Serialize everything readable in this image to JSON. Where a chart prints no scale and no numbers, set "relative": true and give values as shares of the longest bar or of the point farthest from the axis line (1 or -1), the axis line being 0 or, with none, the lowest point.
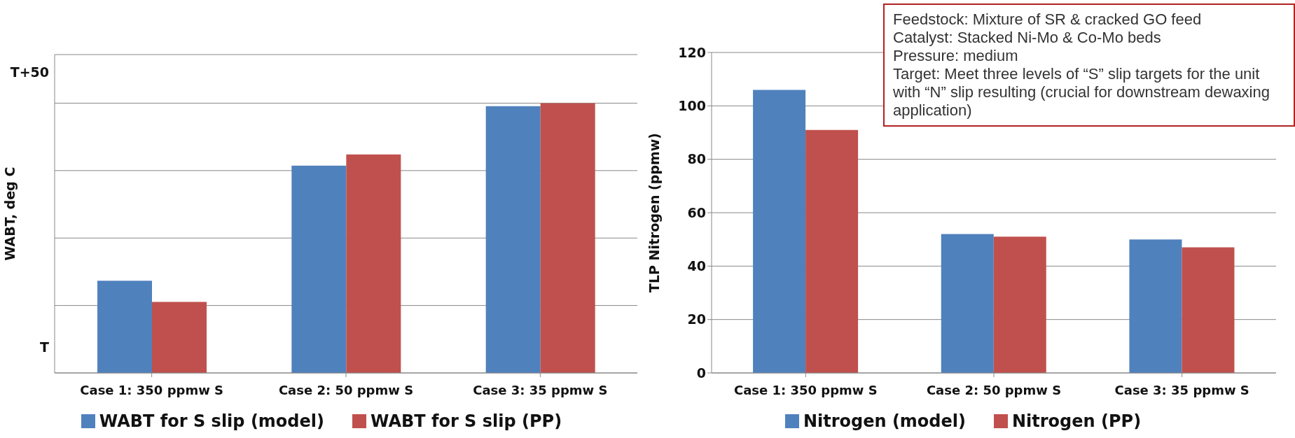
{
  "chart_data": [
    {
      "type": "bar",
      "ylabel": "WABT, deg C",
      "categories": [
        "Case 1: 350 ppmw S",
        "Case 2: 50 ppmw S",
        "Case 3: 35 ppmw S"
      ],
      "series": [
        {
          "name": "WABT for S slip (model)",
          "color": "#4f81bd",
          "values": [
            0.342,
            0.768,
            0.989
          ]
        },
        {
          "name": "WABT for S slip (PP)",
          "color": "#c0504d",
          "values": [
            0.263,
            0.81,
            1
          ]
        }
      ],
      "relative": true,
      "annotations": [
        "T",
        "T+50"
      ],
      "grid": "y",
      "legend": "bottom"
    },
    {
      "type": "bar",
      "ylabel": "TLP Nitrogen (ppmw)",
      "categories": [
        "Case 1: 350 ppmw S",
        "Case 2: 50 ppmw S",
        "Case 3: 35 ppmw S"
      ],
      "series": [
        {
          "name": "Nitrogen (model)",
          "color": "#4f81bd",
          "values": [
            106,
            52,
            50
          ]
        },
        {
          "name": "Nitrogen (PP)",
          "color": "#c0504d",
          "values": [
            91,
            51,
            47
          ]
        }
      ],
      "ylim": [
        0,
        120
      ],
      "yticks": [
        0,
        20,
        40,
        60,
        80,
        100,
        120
      ],
      "grid": "y",
      "legend": "bottom",
      "annotations": [
        "Feedstock: Mixture of SR & cracked GO feed\nCatalyst: Stacked Ni-Mo & Co-Mo beds\nPressure: medium\nTarget: Meet three levels of “S” slip targets for the unit with “N” slip resulting (crucial for downstream dewaxing application)"
      ]
    }
  ]
}
